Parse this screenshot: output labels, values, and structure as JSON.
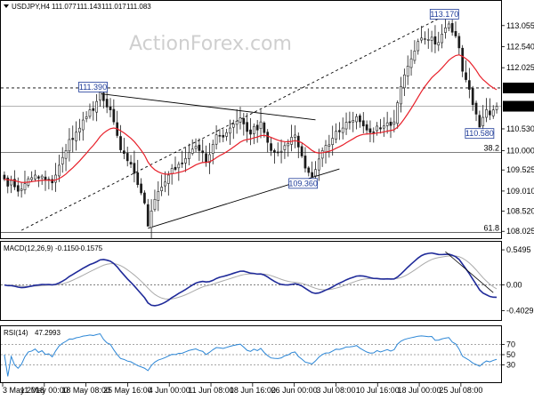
{
  "chart_data": {
    "type": "candlestick",
    "title": "USDJPY,H4",
    "ohlc_readout": [
      "111.077",
      "111.143",
      "111.017",
      "111.083"
    ],
    "watermark": "ActionForex.com",
    "grid": false,
    "colors": {
      "candle": "#1a1a1a",
      "ema": "#e8202a",
      "trend": "#000000",
      "macd": "#1f2a99",
      "signal": "#aaaaaa",
      "rsi": "#2b86d6",
      "tag_border": "#1f3c99",
      "tag_text": "#1f3c99",
      "badge_bg": "#000000",
      "badge_text": "#ffffff"
    },
    "price_axis": {
      "ylim": [
        107.9,
        113.55
      ],
      "ticks": [
        "113.055",
        "112.540",
        "112.025",
        "111.530",
        "111.083",
        "110.530",
        "110.000",
        "109.525",
        "109.010",
        "108.520",
        "108.025"
      ],
      "current": "111.083",
      "level_badge": "111.530"
    },
    "x_axis": {
      "ticks": [
        "3 May 2018",
        "11 May 00:00",
        "18 May 08:00",
        "25 May 16:00",
        "4 Jun 00:00",
        "11 Jun 08:00",
        "18 Jun 16:00",
        "26 Jun 00:00",
        "3 Jul 08:00",
        "10 Jul 16:00",
        "18 Jul 00:00",
        "25 Jul 08:00"
      ]
    },
    "annotations": [
      "113.170",
      "111.390",
      "110.580",
      "109.360"
    ],
    "fib_labels": [
      "38.2",
      "61.8"
    ],
    "price_path": {
      "n": 145,
      "anchors": [
        [
          0,
          109.3
        ],
        [
          4,
          109.05
        ],
        [
          9,
          109.4
        ],
        [
          14,
          109.2
        ],
        [
          19,
          110.2
        ],
        [
          23,
          110.7
        ],
        [
          27,
          111.2
        ],
        [
          28,
          111.39
        ],
        [
          31,
          110.9
        ],
        [
          34,
          110.1
        ],
        [
          38,
          109.4
        ],
        [
          41,
          108.7
        ],
        [
          42,
          108.15
        ],
        [
          45,
          109.0
        ],
        [
          48,
          109.4
        ],
        [
          52,
          109.75
        ],
        [
          56,
          110.15
        ],
        [
          59,
          109.7
        ],
        [
          62,
          110.3
        ],
        [
          66,
          110.55
        ],
        [
          69,
          110.8
        ],
        [
          72,
          110.4
        ],
        [
          75,
          110.7
        ],
        [
          78,
          110.0
        ],
        [
          80,
          109.85
        ],
        [
          83,
          110.25
        ],
        [
          85,
          110.4
        ],
        [
          88,
          109.6
        ],
        [
          90,
          109.36
        ],
        [
          93,
          110.0
        ],
        [
          96,
          110.3
        ],
        [
          99,
          110.55
        ],
        [
          103,
          110.8
        ],
        [
          107,
          110.4
        ],
        [
          111,
          110.6
        ],
        [
          114,
          110.7
        ],
        [
          116,
          111.6
        ],
        [
          118,
          112.1
        ],
        [
          121,
          112.6
        ],
        [
          124,
          112.8
        ],
        [
          126,
          112.6
        ],
        [
          129,
          113.0
        ],
        [
          130,
          113.17
        ],
        [
          132,
          112.8
        ],
        [
          134,
          112.0
        ],
        [
          137,
          111.2
        ],
        [
          139,
          110.58
        ],
        [
          141,
          111.0
        ],
        [
          143,
          110.9
        ],
        [
          144,
          111.08
        ]
      ]
    },
    "trendlines": [
      {
        "from": [
          28,
          111.39
        ],
        "to": [
          91,
          110.75
        ]
      },
      {
        "from": [
          42,
          108.1
        ],
        "to": [
          98,
          109.55
        ]
      },
      {
        "from": [
          5,
          108.05
        ],
        "to": [
          130,
          113.35
        ],
        "dashed": true
      }
    ],
    "fib_levels": [
      {
        "label": "38.2",
        "value": 109.95
      },
      {
        "label": "61.8",
        "value": 108.0
      }
    ],
    "ema_period": 20,
    "macd": {
      "label": "MACD(12,26,9)",
      "values": [
        "-0.1150",
        "-0.1575"
      ],
      "ticks": [
        "0.5495",
        "0.00",
        "-0.4029"
      ],
      "ylim": [
        -0.52,
        0.62
      ]
    },
    "rsi": {
      "label": "RSI(14)",
      "value": "47.2993",
      "ticks": [
        "70",
        "50",
        "30"
      ],
      "ylim": [
        0,
        100
      ]
    }
  }
}
